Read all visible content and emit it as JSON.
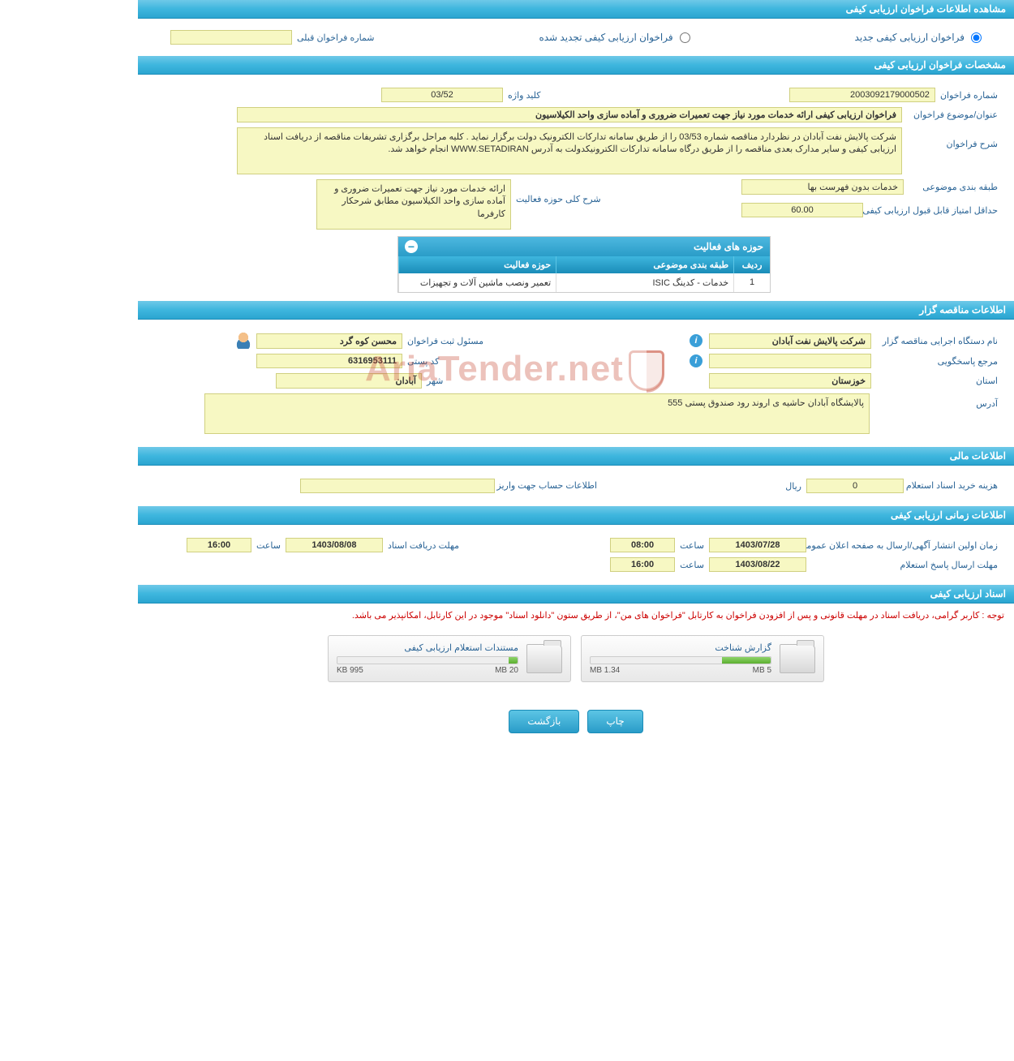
{
  "headers": {
    "main": "مشاهده اطلاعات فراخوان ارزیابی کیفی",
    "spec": "مشخصات فراخوان ارزیابی کیفی",
    "org": "اطلاعات مناقصه گزار",
    "financial": "اطلاعات مالی",
    "timing": "اطلاعات زمانی ارزیابی کیفی",
    "docs": "اسناد ارزیابی کیفی"
  },
  "radios": {
    "new": "فراخوان ارزیابی کیفی جدید",
    "renewed": "فراخوان ارزیابی کیفی تجدید شده",
    "prev_label": "شماره فراخوان قبلی"
  },
  "spec": {
    "call_number_label": "شماره فراخوان",
    "call_number": "2003092179000502",
    "keyword_label": "کلید واژه",
    "keyword": "03/52",
    "title_label": "عنوان/موضوع فراخوان",
    "title": "فراخوان ارزیابی کیفی ارائه خدمات مورد نیاز جهت تعمیرات ضروری و آماده سازی واحد الکیلاسیون",
    "desc_label": "شرح فراخوان",
    "desc": "شرکت پالایش نفت آبادان در نظردارد مناقصه شماره 03/53  را از طریق سامانه تدارکات الکترونیک دولت برگزار نماید . کلیه مراحل برگزاری تشریفات مناقصه از دریافت اسناد ارزیابی کیفی و سایر مدارک بعدی مناقصه را از طریق درگاه سامانه تدارکات الکترونیکدولت به آدرس WWW.SETADIRAN انجام خواهد شد.",
    "category_label": "طبقه بندی موضوعی",
    "category": "خدمات بدون فهرست بها",
    "activity_desc_label": "شرح کلی حوزه فعالیت",
    "activity_desc": "ارائه خدمات مورد نیاز جهت تعمیرات ضروری و آماده سازی واحد الکیلاسیون مطابق شرحکار کارفرما",
    "min_score_label": "حداقل امتیاز قابل قبول ارزیابی کیفی",
    "min_score": "60.00"
  },
  "activity_table": {
    "title": "حوزه های فعالیت",
    "cols": {
      "idx": "ردیف",
      "cat": "طبقه بندی موضوعی",
      "act": "حوزه فعالیت"
    },
    "row": {
      "idx": "1",
      "cat": "خدمات - کدینگ ISIC",
      "act": "تعمیر ونصب ماشین آلات و تجهیزات"
    }
  },
  "org": {
    "agency_label": "نام دستگاه اجرایی مناقصه گزار",
    "agency": "شرکت پالایش نفت آبادان",
    "registrar_label": "مسئول ثبت فراخوان",
    "registrar": "محسن کوه گرد",
    "responder_label": "مرجع پاسخگویی",
    "responder": "",
    "postal_label": "کد پستی",
    "postal": "6316953111",
    "province_label": "استان",
    "province": "خوزستان",
    "city_label": "شهر",
    "city": "آبادان",
    "address_label": "آدرس",
    "address": "پالایشگاه آبادان حاشیه ی اروند رود صندوق پستی 555"
  },
  "financial": {
    "cost_label": "هزینه خرید اسناد استعلام ارزیابی کیفی",
    "cost": "0",
    "currency": "ریال",
    "account_label": "اطلاعات حساب جهت واریز هزینه خرید اسناد",
    "account": ""
  },
  "timing": {
    "publish_label": "زمان اولین انتشار آگهی/ارسال به صفحه اعلان عمومی",
    "publish_date": "1403/07/28",
    "publish_time": "08:00",
    "deadline_docs_label": "مهلت دریافت اسناد",
    "deadline_docs_date": "1403/08/08",
    "deadline_docs_time": "16:00",
    "deadline_reply_label": "مهلت ارسال پاسخ استعلام",
    "deadline_reply_date": "1403/08/22",
    "deadline_reply_time": "16:00",
    "time_word": "ساعت"
  },
  "notice": "توجه : کاربر گرامی، دریافت اسناد در مهلت قانونی و پس از افزودن فراخوان به کارتابل \"فراخوان های من\"، از طریق ستون \"دانلود اسناد\" موجود در این کارتابل، امکانپذیر می باشد.",
  "docs": {
    "card1": {
      "title": "گزارش شناخت",
      "used": "1.34 MB",
      "total": "5 MB",
      "fill_pct": 27
    },
    "card2": {
      "title": "مستندات استعلام ارزیابی کیفی",
      "used": "995 KB",
      "total": "20 MB",
      "fill_pct": 5
    }
  },
  "buttons": {
    "print": "چاپ",
    "back": "بازگشت"
  },
  "watermark": "AriaTender.net"
}
